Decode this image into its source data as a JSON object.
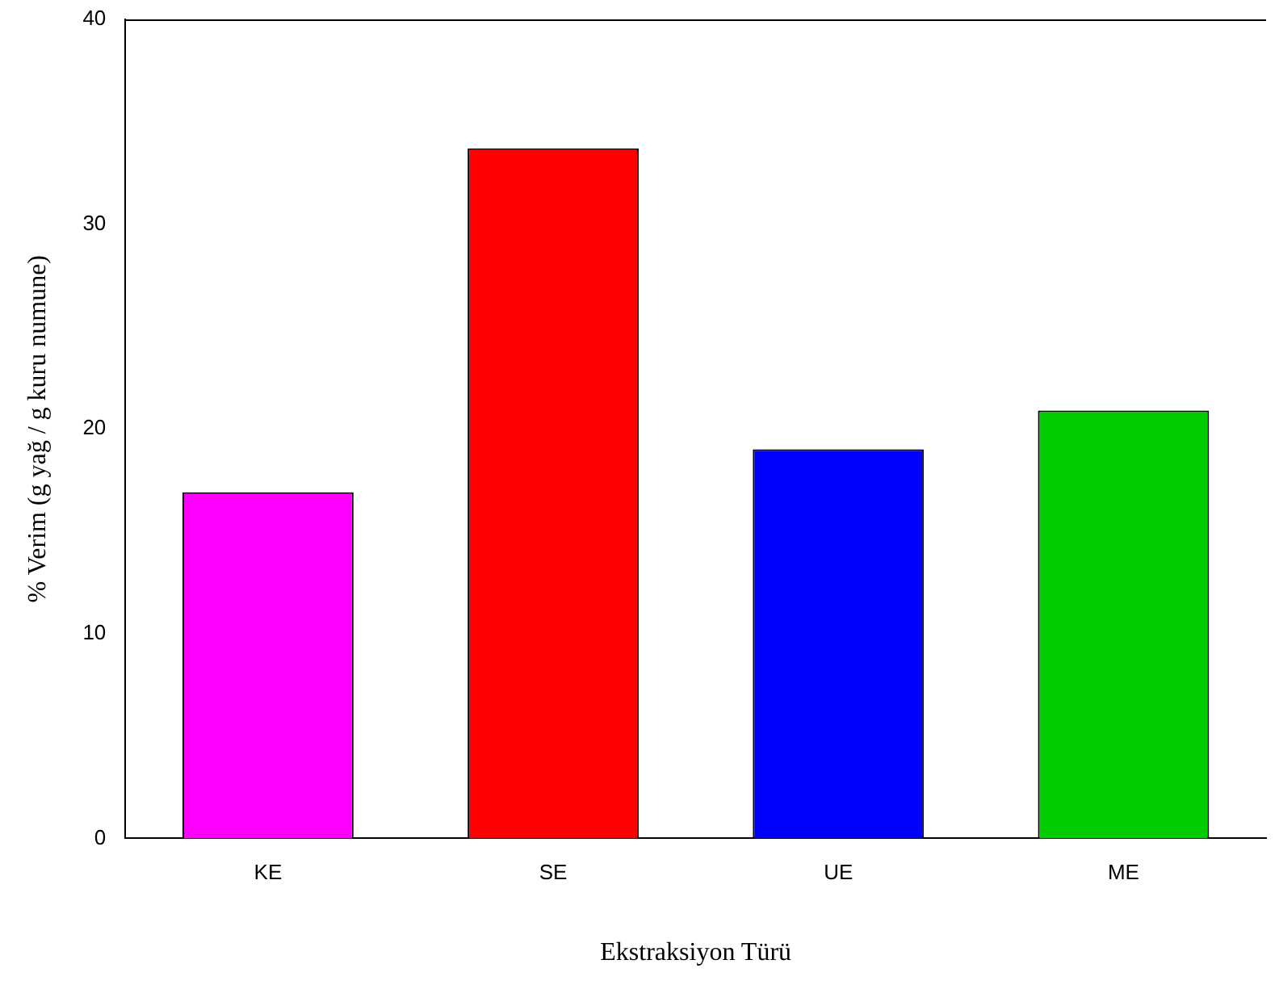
{
  "chart_data": {
    "type": "bar",
    "xlabel": "Ekstraksiyon Türü",
    "ylabel": "% Verim (g yağ / g kuru numune)",
    "categories": [
      "KE",
      "SE",
      "UE",
      "ME"
    ],
    "values": [
      16.9,
      33.7,
      19.0,
      20.9
    ],
    "colors": [
      "#ff00ff",
      "#ff0000",
      "#0000ff",
      "#00cc00"
    ],
    "ylim": [
      0,
      40
    ],
    "yticks": [
      0,
      10,
      20,
      30,
      40
    ],
    "grid": false,
    "legend": false
  }
}
